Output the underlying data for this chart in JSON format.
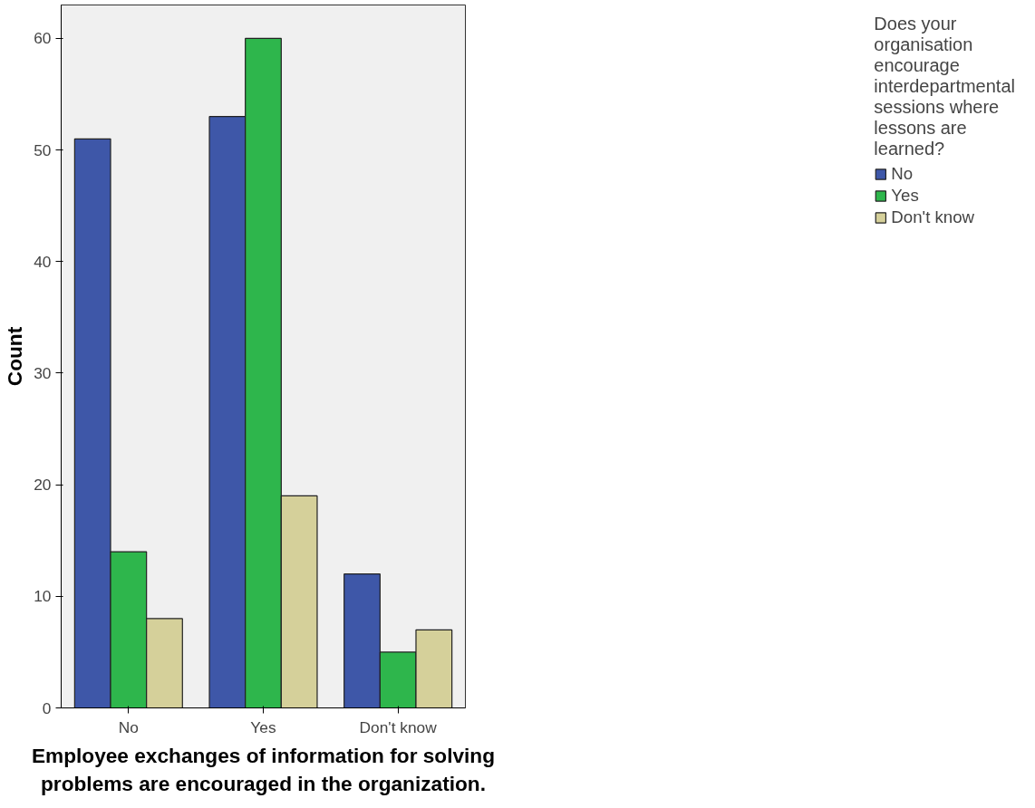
{
  "chart_data": {
    "type": "bar",
    "xlabel": "Employee exchanges of information for solving\nproblems are encouraged in the organization.",
    "ylabel": "Count",
    "legend_title": "Does your\norganisation\nencourage\ninterdepartmental\nsessions where\nlessons are\nlearned?",
    "categories": [
      "No",
      "Yes",
      "Don't know"
    ],
    "series": [
      {
        "name": "No",
        "color": "#3e57a8",
        "values": [
          51,
          53,
          12
        ]
      },
      {
        "name": "Yes",
        "color": "#2eb64c",
        "values": [
          14,
          60,
          5
        ]
      },
      {
        "name": "Don't know",
        "color": "#d5d09a",
        "values": [
          8,
          19,
          7
        ]
      }
    ],
    "ylim": [
      0,
      63
    ],
    "yticks": [
      0,
      10,
      20,
      30,
      40,
      50,
      60
    ],
    "grid": false,
    "legend": "right"
  }
}
